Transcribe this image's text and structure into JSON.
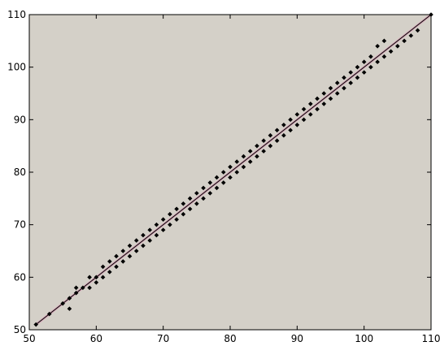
{
  "chart_data": {
    "type": "scatter",
    "title": "",
    "xlabel": "",
    "ylabel": "",
    "xlim": [
      50,
      110
    ],
    "ylim": [
      50,
      110
    ],
    "grid": false,
    "legend": "none",
    "x_ticks": [
      "50",
      "60",
      "70",
      "80",
      "90",
      "100",
      "110"
    ],
    "y_ticks": [
      "50",
      "60",
      "70",
      "80",
      "90",
      "100",
      "110"
    ],
    "colors": {
      "plot_background": "#d4d0c8",
      "marker": "#000000",
      "reference_line": "#000000",
      "reference_line_tint": "#e060a0"
    },
    "reference_line": {
      "x": [
        51,
        110
      ],
      "y": [
        51,
        110
      ]
    },
    "series": [
      {
        "marker": "diamond",
        "points": [
          [
            51,
            51
          ],
          [
            53,
            53
          ],
          [
            55,
            55
          ],
          [
            56,
            54
          ],
          [
            56,
            56
          ],
          [
            57,
            57
          ],
          [
            57,
            58
          ],
          [
            58,
            58
          ],
          [
            59,
            58
          ],
          [
            59,
            60
          ],
          [
            60,
            59
          ],
          [
            60,
            60
          ],
          [
            61,
            60
          ],
          [
            61,
            62
          ],
          [
            62,
            61
          ],
          [
            62,
            63
          ],
          [
            63,
            62
          ],
          [
            63,
            64
          ],
          [
            64,
            63
          ],
          [
            64,
            65
          ],
          [
            65,
            64
          ],
          [
            65,
            66
          ],
          [
            66,
            65
          ],
          [
            66,
            67
          ],
          [
            67,
            66
          ],
          [
            67,
            68
          ],
          [
            68,
            67
          ],
          [
            68,
            69
          ],
          [
            69,
            68
          ],
          [
            69,
            70
          ],
          [
            70,
            69
          ],
          [
            70,
            71
          ],
          [
            71,
            70
          ],
          [
            71,
            72
          ],
          [
            72,
            71
          ],
          [
            72,
            73
          ],
          [
            73,
            72
          ],
          [
            73,
            74
          ],
          [
            74,
            73
          ],
          [
            74,
            75
          ],
          [
            75,
            74
          ],
          [
            75,
            76
          ],
          [
            76,
            75
          ],
          [
            76,
            77
          ],
          [
            77,
            76
          ],
          [
            77,
            78
          ],
          [
            78,
            77
          ],
          [
            78,
            79
          ],
          [
            79,
            78
          ],
          [
            79,
            80
          ],
          [
            80,
            79
          ],
          [
            80,
            81
          ],
          [
            81,
            80
          ],
          [
            81,
            82
          ],
          [
            82,
            81
          ],
          [
            82,
            83
          ],
          [
            83,
            82
          ],
          [
            83,
            84
          ],
          [
            84,
            83
          ],
          [
            84,
            85
          ],
          [
            85,
            84
          ],
          [
            85,
            86
          ],
          [
            86,
            85
          ],
          [
            86,
            87
          ],
          [
            87,
            86
          ],
          [
            87,
            88
          ],
          [
            88,
            87
          ],
          [
            88,
            89
          ],
          [
            89,
            88
          ],
          [
            89,
            90
          ],
          [
            90,
            89
          ],
          [
            90,
            91
          ],
          [
            91,
            90
          ],
          [
            91,
            92
          ],
          [
            92,
            91
          ],
          [
            92,
            93
          ],
          [
            93,
            92
          ],
          [
            93,
            94
          ],
          [
            94,
            93
          ],
          [
            94,
            95
          ],
          [
            95,
            94
          ],
          [
            95,
            96
          ],
          [
            96,
            95
          ],
          [
            96,
            97
          ],
          [
            97,
            96
          ],
          [
            97,
            98
          ],
          [
            98,
            97
          ],
          [
            98,
            99
          ],
          [
            99,
            98
          ],
          [
            99,
            100
          ],
          [
            100,
            99
          ],
          [
            100,
            101
          ],
          [
            101,
            100
          ],
          [
            101,
            102
          ],
          [
            102,
            101
          ],
          [
            102,
            104
          ],
          [
            103,
            105
          ],
          [
            103,
            102
          ],
          [
            104,
            103
          ],
          [
            105,
            104
          ],
          [
            106,
            105
          ],
          [
            107,
            106
          ],
          [
            108,
            107
          ],
          [
            110,
            110
          ]
        ]
      }
    ]
  }
}
